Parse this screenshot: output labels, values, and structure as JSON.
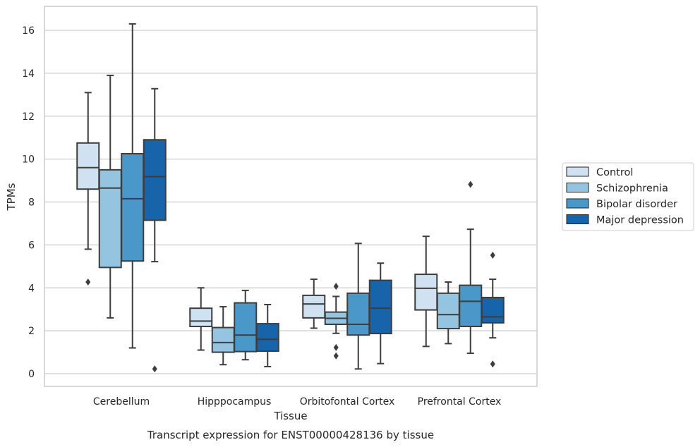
{
  "chart_data": {
    "type": "boxplot",
    "title": "Transcript expression for ENST00000428136 by tissue",
    "xlabel": "Tissue",
    "ylabel": "TPMs",
    "ylim": [
      -0.45,
      17.1
    ],
    "yticks": [
      0,
      2,
      4,
      6,
      8,
      10,
      12,
      14,
      16
    ],
    "grid": true,
    "legend_position": "right",
    "categories": [
      "Cerebellum",
      "Hipppocampus",
      "Orbitofontal Cortex",
      "Prefrontal Cortex"
    ],
    "series": [
      {
        "name": "Control",
        "color": "#d0e1f2",
        "boxes": [
          {
            "whisker_low": 5.8,
            "q1": 8.6,
            "median": 9.6,
            "q3": 10.75,
            "whisker_high": 13.1,
            "outliers": [
              4.27
            ]
          },
          {
            "whisker_low": 1.1,
            "q1": 2.2,
            "median": 2.45,
            "q3": 3.05,
            "whisker_high": 4.0,
            "outliers": []
          },
          {
            "whisker_low": 2.12,
            "q1": 2.6,
            "median": 3.25,
            "q3": 3.65,
            "whisker_high": 4.4,
            "outliers": []
          },
          {
            "whisker_low": 1.27,
            "q1": 2.97,
            "median": 3.98,
            "q3": 4.63,
            "whisker_high": 6.4,
            "outliers": []
          }
        ]
      },
      {
        "name": "Schizophrenia",
        "color": "#94c4df",
        "boxes": [
          {
            "whisker_low": 2.6,
            "q1": 4.95,
            "median": 8.65,
            "q3": 9.5,
            "whisker_high": 13.9,
            "outliers": []
          },
          {
            "whisker_low": 0.42,
            "q1": 1.0,
            "median": 1.45,
            "q3": 2.15,
            "whisker_high": 3.12,
            "outliers": []
          },
          {
            "whisker_low": 1.88,
            "q1": 2.3,
            "median": 2.58,
            "q3": 2.87,
            "whisker_high": 3.6,
            "outliers": [
              4.07,
              1.22,
              0.83
            ]
          },
          {
            "whisker_low": 1.4,
            "q1": 2.1,
            "median": 2.75,
            "q3": 3.75,
            "whisker_high": 4.27,
            "outliers": []
          }
        ]
      },
      {
        "name": "Bipolar disorder",
        "color": "#4a98c9",
        "boxes": [
          {
            "whisker_low": 1.2,
            "q1": 5.25,
            "median": 8.15,
            "q3": 10.25,
            "whisker_high": 16.3,
            "outliers": []
          },
          {
            "whisker_low": 0.65,
            "q1": 1.03,
            "median": 1.8,
            "q3": 3.3,
            "whisker_high": 3.88,
            "outliers": []
          },
          {
            "whisker_low": 0.22,
            "q1": 1.8,
            "median": 2.3,
            "q3": 3.75,
            "whisker_high": 6.07,
            "outliers": []
          },
          {
            "whisker_low": 0.95,
            "q1": 2.2,
            "median": 3.37,
            "q3": 4.12,
            "whisker_high": 6.73,
            "outliers": [
              8.82
            ]
          }
        ]
      },
      {
        "name": "Major depression",
        "color": "#1764ab",
        "boxes": [
          {
            "whisker_low": 5.22,
            "q1": 7.15,
            "median": 9.18,
            "q3": 10.9,
            "whisker_high": 13.28,
            "outliers": [
              0.22
            ]
          },
          {
            "whisker_low": 0.33,
            "q1": 1.05,
            "median": 1.6,
            "q3": 2.33,
            "whisker_high": 3.22,
            "outliers": []
          },
          {
            "whisker_low": 0.47,
            "q1": 1.87,
            "median": 3.05,
            "q3": 4.35,
            "whisker_high": 5.15,
            "outliers": []
          },
          {
            "whisker_low": 1.67,
            "q1": 2.37,
            "median": 2.65,
            "q3": 3.55,
            "whisker_high": 4.4,
            "outliers": [
              5.52,
              0.45
            ]
          }
        ]
      }
    ]
  }
}
